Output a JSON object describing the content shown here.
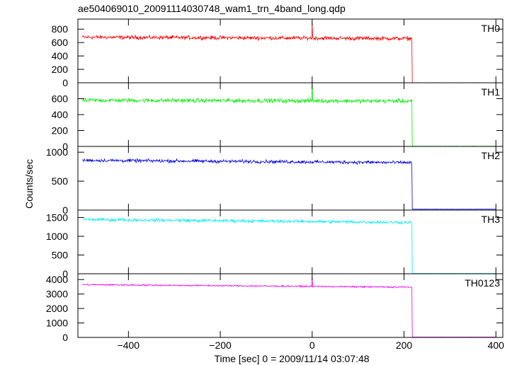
{
  "chart_data": {
    "type": "line",
    "title": "ae504069010_20091114030748_wam1_trn_4band_long.qdp",
    "xlabel": "Time [sec] 0 = 2009/11/14 03:07:48",
    "ylabel": "Counts/sec",
    "xlim": [
      -510,
      415
    ],
    "x_ticks": [
      -400,
      -200,
      0,
      200,
      400
    ],
    "x_tick_labels": [
      "−400",
      "−200",
      "0",
      "200",
      "400"
    ],
    "grid": false,
    "step_time": 218,
    "series": [
      {
        "name": "TH0",
        "color": "#ff0000",
        "mean": 680,
        "noise": 25,
        "trend": -20,
        "spike_at": 0,
        "spike_to": 900,
        "after": 0,
        "ylim": [
          0,
          950
        ],
        "yticks": [
          0,
          200,
          400,
          600,
          800
        ],
        "ytick_labels": [
          "0",
          "200",
          "400",
          "600",
          "800"
        ]
      },
      {
        "name": "TH1",
        "color": "#00ee00",
        "mean": 580,
        "noise": 22,
        "trend": -10,
        "spike_at": 0,
        "spike_to": 800,
        "after": 2,
        "ylim": [
          0,
          800
        ],
        "yticks": [
          0,
          200,
          400,
          600
        ],
        "ytick_labels": [
          "0",
          "200",
          "400",
          "600"
        ]
      },
      {
        "name": "TH2",
        "color": "#0000dd",
        "mean": 860,
        "noise": 25,
        "trend": -40,
        "spike_at": null,
        "spike_to": null,
        "after": 15,
        "ylim": [
          0,
          1100
        ],
        "yticks": [
          0,
          500,
          1000
        ],
        "ytick_labels": [
          "0",
          "500",
          "1000"
        ]
      },
      {
        "name": "TH3",
        "color": "#00eeee",
        "mean": 1450,
        "noise": 35,
        "trend": -80,
        "spike_at": null,
        "spike_to": null,
        "after": 8,
        "ylim": [
          0,
          1700
        ],
        "yticks": [
          0,
          500,
          1000,
          1500
        ],
        "ytick_labels": [
          "0",
          "500",
          "1000",
          "1500"
        ]
      },
      {
        "name": "TH0123",
        "color": "#ee00ee",
        "mean": 3650,
        "noise": 45,
        "trend": -180,
        "spike_at": 0,
        "spike_to": 4150,
        "after": 25,
        "ylim": [
          0,
          4400
        ],
        "yticks": [
          0,
          1000,
          2000,
          3000,
          4000
        ],
        "ytick_labels": [
          "0",
          "1000",
          "2000",
          "3000",
          "4000"
        ]
      }
    ]
  }
}
